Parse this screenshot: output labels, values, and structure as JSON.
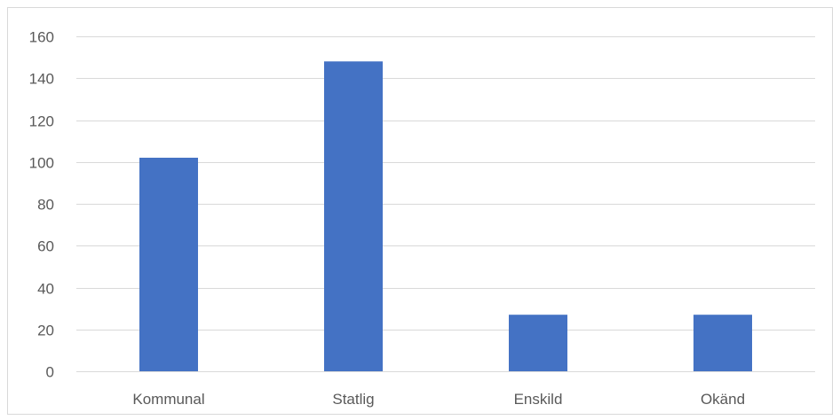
{
  "chart_data": {
    "type": "bar",
    "title": "",
    "xlabel": "",
    "ylabel": "",
    "categories": [
      "Kommunal",
      "Statlig",
      "Enskild",
      "Okänd"
    ],
    "values": [
      102,
      148,
      27,
      27
    ],
    "ylim": [
      0,
      160
    ],
    "yticks": [
      0,
      20,
      40,
      60,
      80,
      100,
      120,
      140,
      160
    ],
    "grid": true,
    "legend": "none",
    "bar_color": "#4472C4",
    "grid_color": "#D9D9D9",
    "text_color": "#595959"
  }
}
